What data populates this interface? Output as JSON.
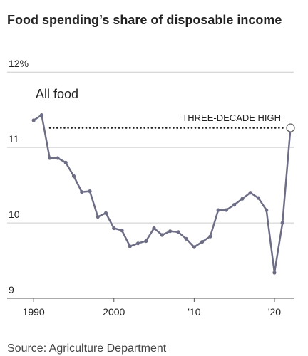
{
  "chart_data": {
    "type": "line",
    "title": "Food spending’s share of disposable income",
    "annotation": "All food",
    "highlight_label": "THREE-DECADE HIGH",
    "source": "Source: Agriculture Department",
    "x": [
      1990,
      1991,
      1992,
      1993,
      1994,
      1995,
      1996,
      1997,
      1998,
      1999,
      2000,
      2001,
      2002,
      2003,
      2004,
      2005,
      2006,
      2007,
      2008,
      2009,
      2010,
      2011,
      2012,
      2013,
      2014,
      2015,
      2016,
      2017,
      2018,
      2019,
      2020,
      2021,
      2022
    ],
    "values": [
      11.36,
      11.43,
      10.86,
      10.86,
      10.8,
      10.62,
      10.41,
      10.42,
      10.08,
      10.13,
      9.93,
      9.9,
      9.69,
      9.73,
      9.76,
      9.93,
      9.84,
      9.89,
      9.88,
      9.79,
      9.68,
      9.75,
      9.82,
      10.17,
      10.17,
      10.24,
      10.32,
      10.4,
      10.33,
      10.17,
      9.34,
      10.0,
      11.26
    ],
    "color": "#6d6e86",
    "xlim": [
      1986.7,
      2022.4
    ],
    "ylim": [
      9,
      12.2
    ],
    "yticks": [
      {
        "value": 12,
        "label": "12%"
      },
      11,
      10,
      9
    ],
    "xticks": [
      1990,
      2000,
      {
        "value": 2010,
        "label": "'10"
      },
      {
        "value": 2020,
        "label": "'20"
      }
    ],
    "grid": true
  }
}
